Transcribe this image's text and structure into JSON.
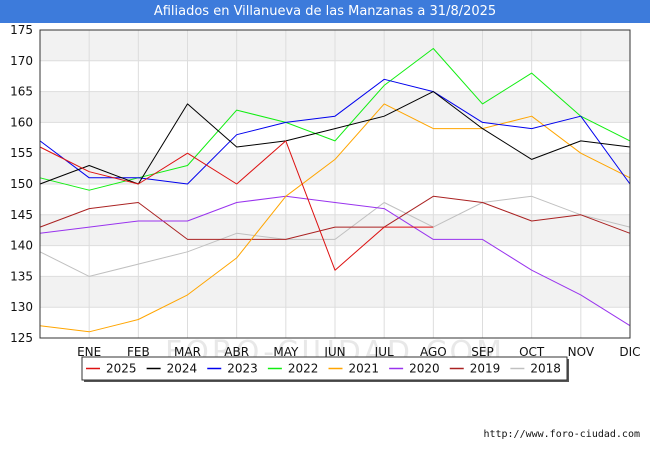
{
  "header": {
    "title": "Afiliados en Villanueva de las Manzanas a 31/8/2025"
  },
  "footer": {
    "url": "http://www.foro-ciudad.com"
  },
  "watermark": "FORO-CIUDAD.COM",
  "chart_data": {
    "type": "line",
    "title": "Afiliados en Villanueva de las Manzanas a 31/8/2025",
    "xlabel": "",
    "ylabel": "",
    "categories": [
      "",
      "ENE",
      "FEB",
      "MAR",
      "ABR",
      "MAY",
      "JUN",
      "JUL",
      "AGO",
      "SEP",
      "OCT",
      "NOV",
      "DIC"
    ],
    "ylim": [
      125,
      175
    ],
    "yticks": [
      125,
      130,
      135,
      140,
      145,
      150,
      155,
      160,
      165,
      170,
      175
    ],
    "grid": true,
    "legend_position": "bottom",
    "series": [
      {
        "name": "2025",
        "color": "#dd1111",
        "values": [
          156,
          152,
          150,
          155,
          150,
          157,
          136,
          143,
          143,
          null,
          null,
          null,
          null
        ]
      },
      {
        "name": "2024",
        "color": "#000000",
        "values": [
          150,
          153,
          150,
          163,
          156,
          157,
          159,
          161,
          165,
          159,
          154,
          157,
          156
        ]
      },
      {
        "name": "2023",
        "color": "#0000ee",
        "values": [
          157,
          151,
          151,
          150,
          158,
          160,
          161,
          167,
          165,
          160,
          159,
          161,
          150
        ]
      },
      {
        "name": "2022",
        "color": "#11ee11",
        "values": [
          151,
          149,
          151,
          153,
          162,
          160,
          157,
          166,
          172,
          163,
          168,
          161,
          157
        ]
      },
      {
        "name": "2021",
        "color": "#ffa500",
        "values": [
          127,
          126,
          128,
          132,
          138,
          148,
          154,
          163,
          159,
          159,
          161,
          155,
          151
        ]
      },
      {
        "name": "2020",
        "color": "#9933ee",
        "values": [
          142,
          143,
          144,
          144,
          147,
          148,
          147,
          146,
          141,
          141,
          136,
          132,
          127
        ]
      },
      {
        "name": "2019",
        "color": "#aa2222",
        "values": [
          143,
          146,
          147,
          141,
          141,
          141,
          143,
          143,
          148,
          147,
          144,
          145,
          142
        ]
      },
      {
        "name": "2018",
        "color": "#c0c0c0",
        "values": [
          139,
          135,
          137,
          139,
          142,
          141,
          141,
          147,
          143,
          147,
          148,
          145,
          143
        ]
      }
    ]
  }
}
